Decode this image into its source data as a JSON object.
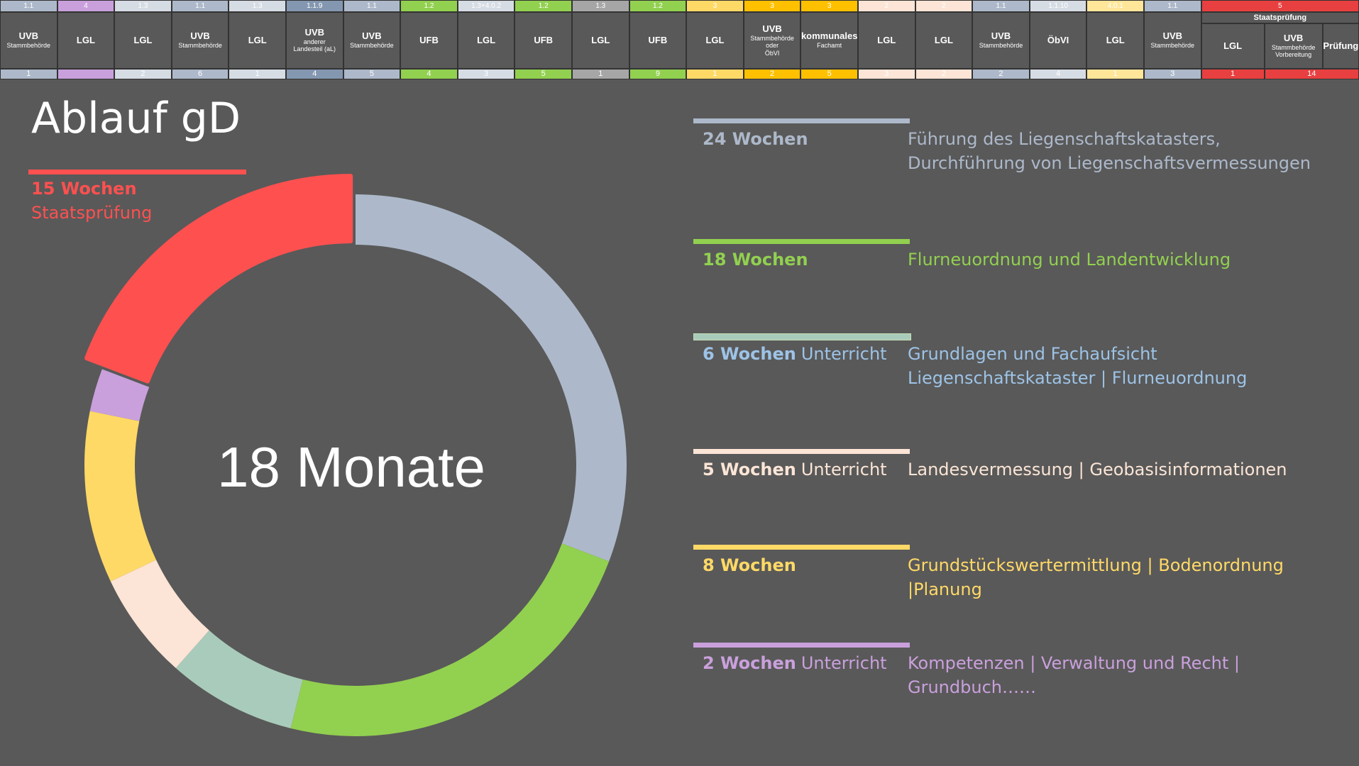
{
  "table": {
    "columns": [
      {
        "code": "1.1",
        "label": [
          "UVB",
          "Stammbehörde"
        ],
        "count": "1",
        "color": "#adb9ca"
      },
      {
        "code": "4",
        "label": [
          "LGL"
        ],
        "count": null,
        "color": "#c9a0dc"
      },
      {
        "code": "1.3",
        "label": [
          "LGL"
        ],
        "count": "2",
        "color": "#d6dce4"
      },
      {
        "code": "1.1",
        "label": [
          "UVB",
          "Stammbehörde"
        ],
        "count": "6",
        "color": "#adb9ca"
      },
      {
        "code": "1.3",
        "label": [
          "LGL"
        ],
        "count": "1",
        "color": "#d6dce4"
      },
      {
        "code": "1.1.9",
        "label": [
          "UVB",
          "anderer",
          "Landesteil (aL)"
        ],
        "count": "4",
        "color": "#8497b0"
      },
      {
        "code": "1.1",
        "label": [
          "UVB",
          "Stammbehörde"
        ],
        "count": "5",
        "color": "#adb9ca"
      },
      {
        "code": "1.2",
        "label": [
          "UFB"
        ],
        "count": "4",
        "color": "#92d050"
      },
      {
        "code": "1.3+4.0.2",
        "label": [
          "LGL"
        ],
        "count": "3",
        "color": "#d6dce4"
      },
      {
        "code": "1.2",
        "label": [
          "UFB"
        ],
        "count": "5",
        "color": "#92d050"
      },
      {
        "code": "1.3",
        "label": [
          "LGL"
        ],
        "count": "1",
        "color": "#a6a6a6"
      },
      {
        "code": "1.2",
        "label": [
          "UFB"
        ],
        "count": "9",
        "color": "#92d050"
      },
      {
        "code": "3",
        "label": [
          "LGL"
        ],
        "count": "1",
        "color": "#ffd966"
      },
      {
        "code": "3",
        "label": [
          "UVB",
          "Stammbehörde",
          "oder",
          "ÖbVI"
        ],
        "count": "2",
        "color": "#ffc000"
      },
      {
        "code": "3",
        "label": [
          "kommunales",
          "Fachamt"
        ],
        "count": "5",
        "color": "#ffc000"
      },
      {
        "code": "2",
        "label": [
          "LGL"
        ],
        "count": "3",
        "color": "#fce4d6"
      },
      {
        "code": "2",
        "label": [
          "LGL"
        ],
        "count": "2",
        "color": "#fce4d6"
      },
      {
        "code": "1.1",
        "label": [
          "UVB",
          "Stammbehörde"
        ],
        "count": "2",
        "color": "#adb9ca"
      },
      {
        "code": "1.1.10",
        "label": [
          "ÖbVI"
        ],
        "count": "4",
        "color": "#d6dce4"
      },
      {
        "code": "4.0.1",
        "label": [
          "LGL"
        ],
        "count": "1",
        "color": "#ffe699"
      },
      {
        "code": "1.1",
        "label": [
          "UVB",
          "Stammbehörde"
        ],
        "count": "3",
        "color": "#adb9ca"
      }
    ],
    "exam": {
      "code": "5",
      "title": "Staatsprüfung",
      "color": "#e84040",
      "columns": [
        {
          "label": [
            "LGL"
          ]
        },
        {
          "label": [
            "UVB",
            "Stammbehörde",
            "Vorbereitung"
          ]
        },
        {
          "label": [
            "Prüfung"
          ]
        }
      ],
      "counts": [
        "1",
        "14"
      ]
    }
  },
  "chart_data": {
    "type": "pie",
    "title": "Ablauf gD",
    "center_label": "18 Monate",
    "categories": [
      "Führung des Liegenschaftskatasters,\nDurchführung von Liegenschaftsvermessungen",
      "Flurneuordnung und Landentwicklung",
      "Grundlagen und Fachaufsicht\nLiegenschaftskataster | Flurneuordnung",
      "Landesvermessung | Geobasisinformationen",
      "Grundstückswertermittlung | Bodenordnung |Planung",
      "Kompetenzen | Verwaltung und Recht |\nGrundbuch……",
      "Staatsprüfung"
    ],
    "values": [
      24,
      18,
      6,
      5,
      8,
      2,
      15
    ],
    "value_labels": [
      "24 Wochen",
      "18 Wochen",
      "6 Wochen",
      "5 Wochen",
      "8 Wochen",
      "2 Wochen",
      "15 Wochen"
    ],
    "suffixes": [
      null,
      null,
      "Unterricht",
      "Unterricht",
      null,
      "Unterricht",
      null
    ],
    "colors": [
      "#adb9ca",
      "#92d050",
      "#a9cbbb",
      "#fce4d6",
      "#ffd966",
      "#c9a0dc",
      "#ff5050"
    ],
    "text_colors": [
      "#adb9ca",
      "#92d050",
      "#9dc3e6",
      "#fbe5d6",
      "#ffd966",
      "#c9a0dc",
      "#ff5050"
    ]
  }
}
